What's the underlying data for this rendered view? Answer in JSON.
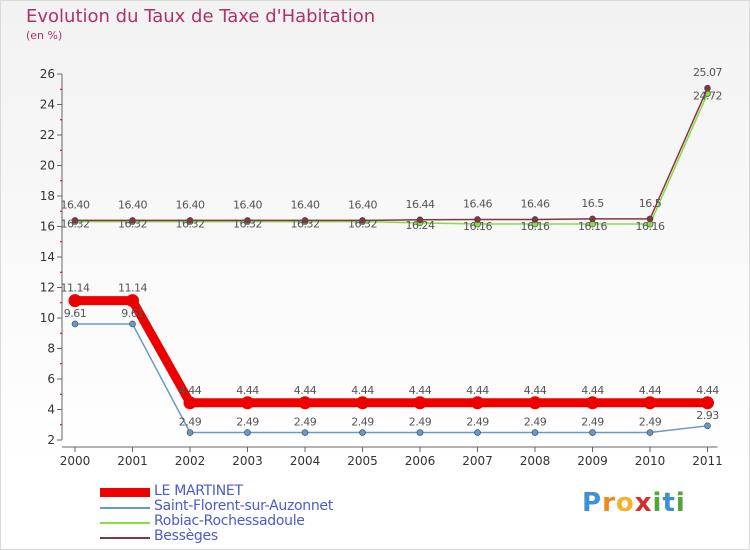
{
  "header": {
    "title": "Evolution du Taux de Taxe d'Habitation",
    "subtitle": "(en %)"
  },
  "logo": {
    "text": "Proxiti"
  },
  "chart_data": {
    "type": "line",
    "title": "Evolution du Taux de Taxe d'Habitation",
    "subtitle": "(en %)",
    "xlabel": "",
    "ylabel": "",
    "categories": [
      "2000",
      "2001",
      "2002",
      "2003",
      "2004",
      "2005",
      "2006",
      "2007",
      "2008",
      "2009",
      "2010",
      "2011"
    ],
    "y_ticks": [
      2,
      4,
      6,
      8,
      10,
      12,
      14,
      16,
      18,
      20,
      22,
      24,
      26
    ],
    "ylim": [
      2,
      26
    ],
    "grid": false,
    "legend_position": "bottom-left",
    "series": [
      {
        "name": "LE MARTINET",
        "color": "#ee0000",
        "values": [
          11.14,
          11.14,
          4.44,
          4.44,
          4.44,
          4.44,
          4.44,
          4.44,
          4.44,
          4.44,
          4.44,
          4.44
        ],
        "labels": [
          "11.14",
          "11.14",
          "4.44",
          "4.44",
          "4.44",
          "4.44",
          "4.44",
          "4.44",
          "4.44",
          "4.44",
          "4.44",
          "4.44"
        ]
      },
      {
        "name": "Saint-Florent-sur-Auzonnet",
        "color": "#6699cc",
        "values": [
          9.61,
          9.61,
          2.49,
          2.49,
          2.49,
          2.49,
          2.49,
          2.49,
          2.49,
          2.49,
          2.49,
          2.93
        ],
        "labels": [
          "9.61",
          "9.61",
          "2.49",
          "2.49",
          "2.49",
          "2.49",
          "2.49",
          "2.49",
          "2.49",
          "2.49",
          "2.49",
          "2.93"
        ]
      },
      {
        "name": "Robiac-Rochessadoule",
        "color": "#88dd44",
        "values": [
          16.32,
          16.32,
          16.32,
          16.32,
          16.32,
          16.32,
          16.24,
          16.16,
          16.16,
          16.16,
          16.16,
          24.72
        ],
        "labels": [
          "16.32",
          "16.32",
          "16.32",
          "16.32",
          "16.32",
          "16.32",
          "16.24",
          "16.16",
          "16.16",
          "16.16",
          "16.16",
          "24.72"
        ]
      },
      {
        "name": "Bessèges",
        "color": "#883344",
        "values": [
          16.4,
          16.4,
          16.4,
          16.4,
          16.4,
          16.4,
          16.44,
          16.46,
          16.46,
          16.5,
          16.5,
          25.07
        ],
        "labels": [
          "16.40",
          "16.40",
          "16.40",
          "16.40",
          "16.40",
          "16.40",
          "16.44",
          "16.46",
          "16.46",
          "16.5",
          "16.5",
          "25.07"
        ]
      }
    ]
  }
}
